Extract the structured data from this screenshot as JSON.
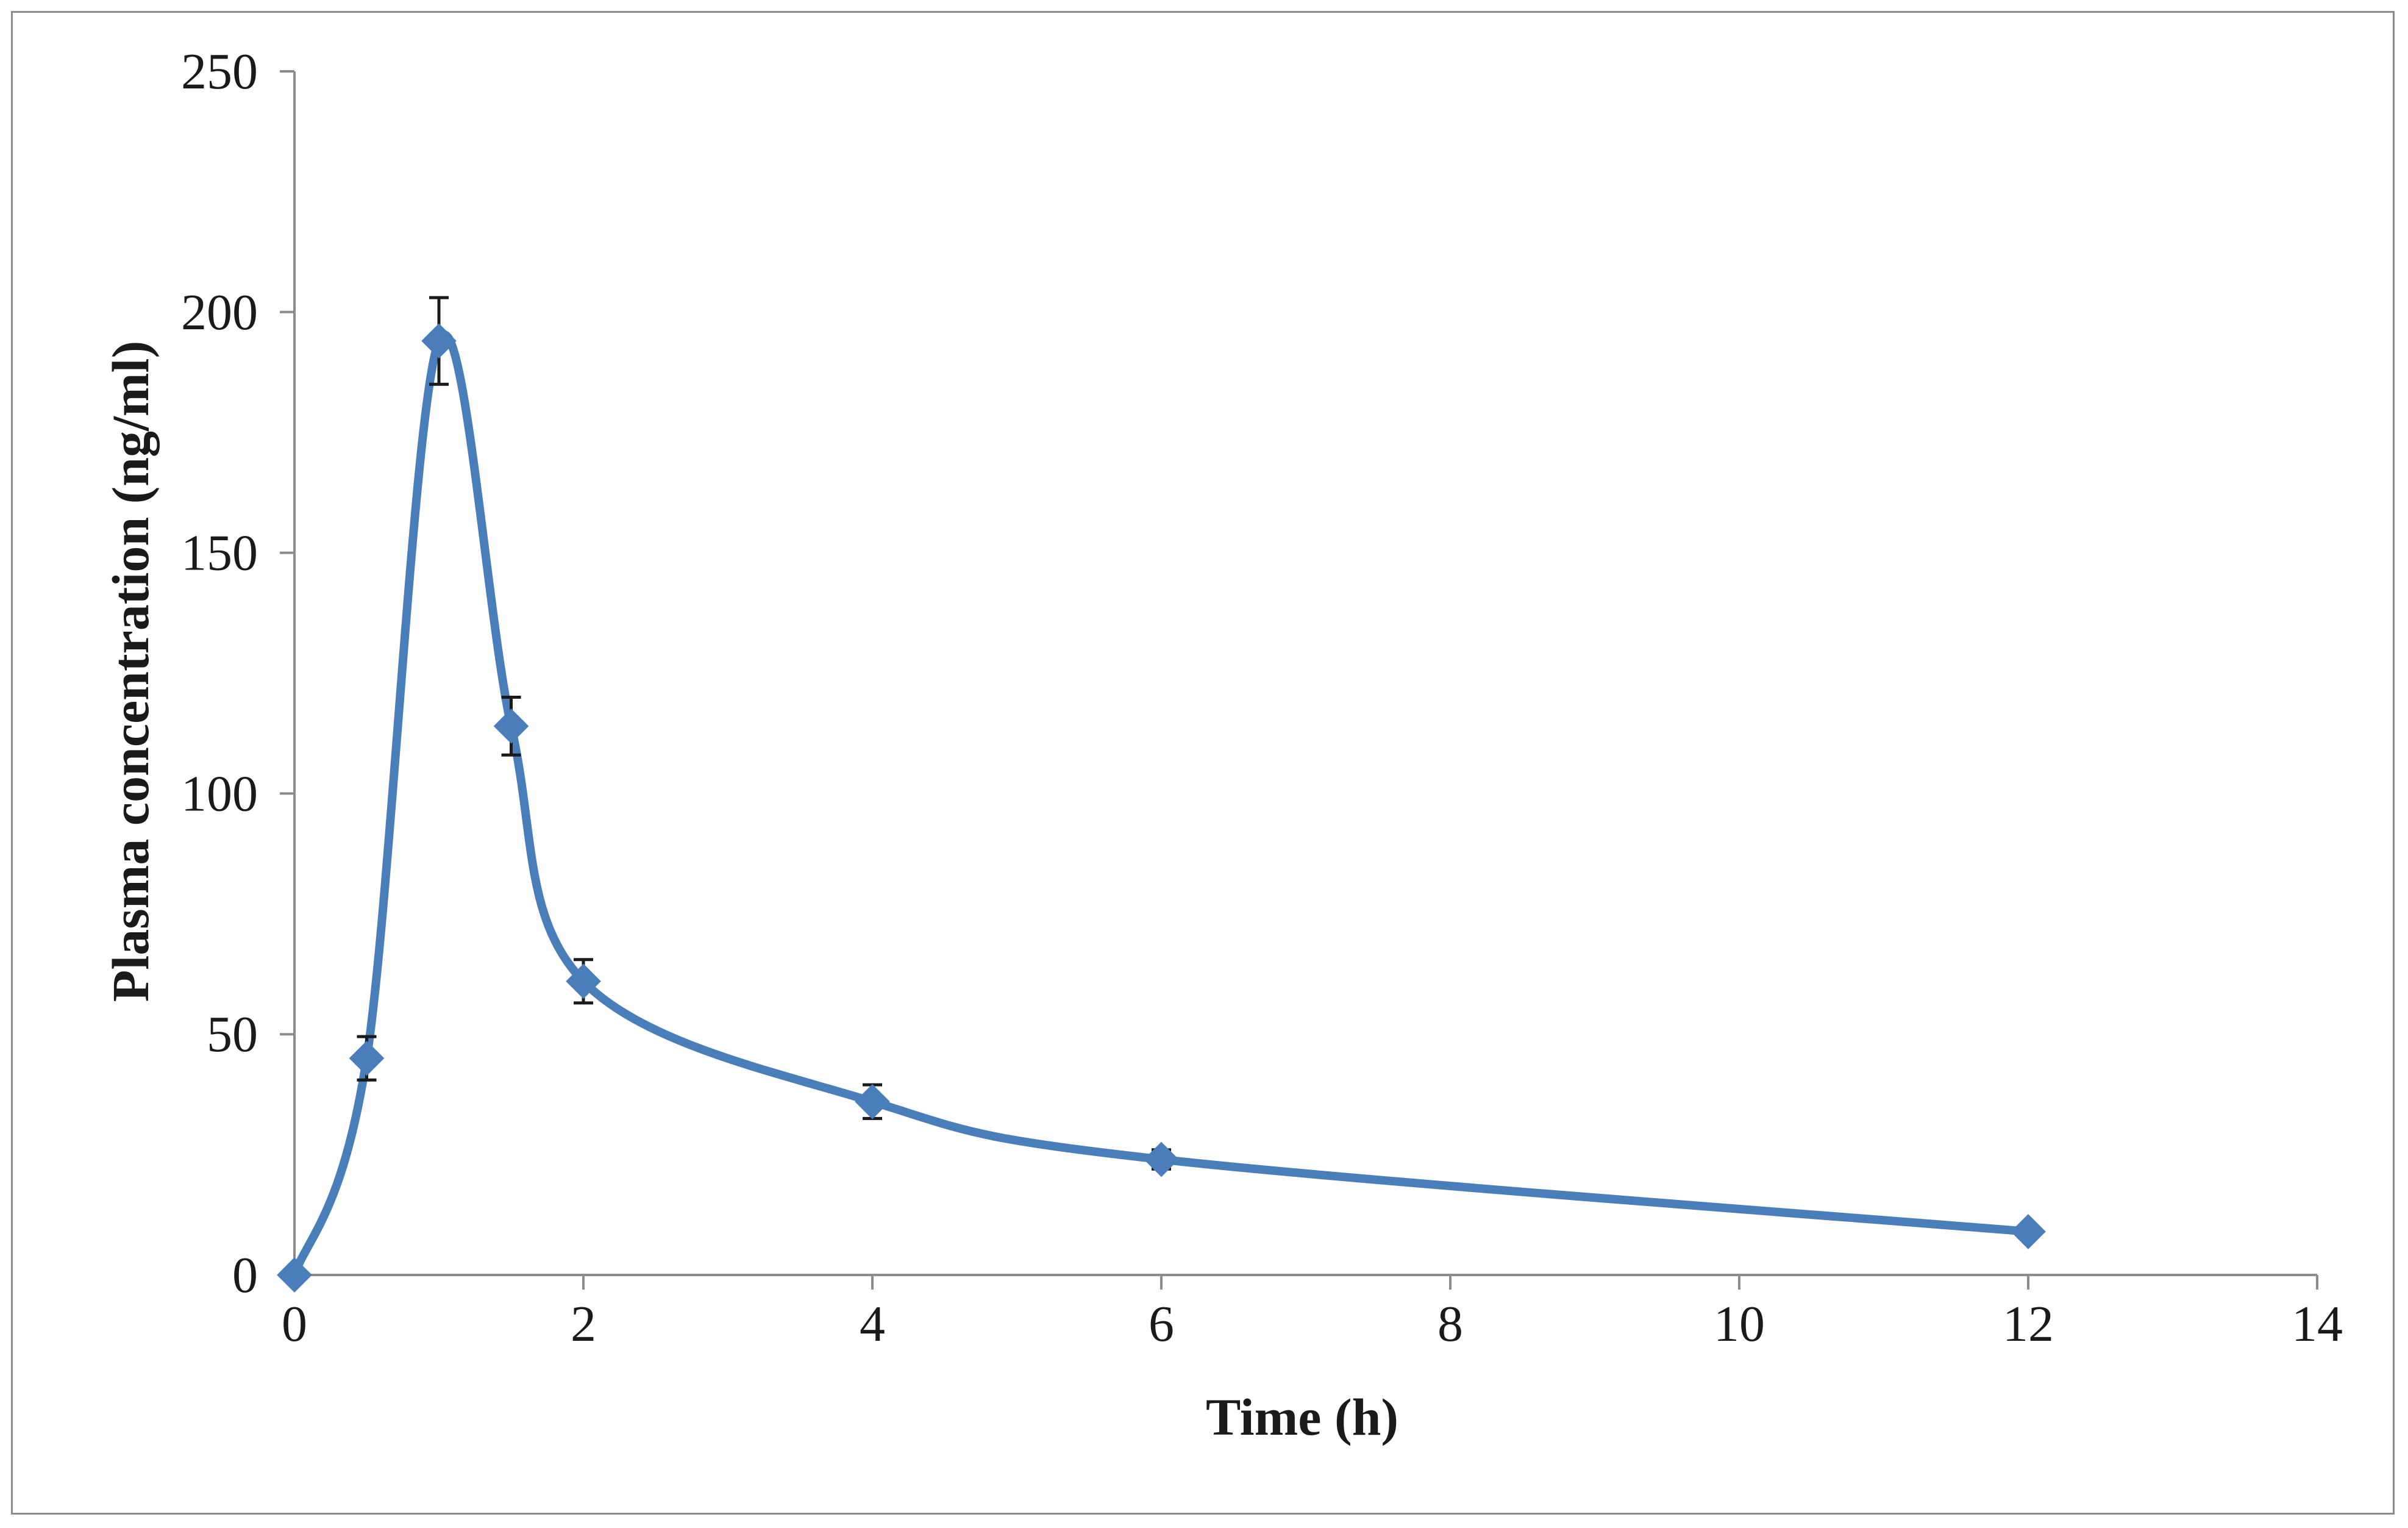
{
  "chart_data": {
    "type": "line",
    "title": "",
    "xlabel": "Time (h)",
    "ylabel": "Plasma concentration (ng/ml)",
    "xlim": [
      0,
      14
    ],
    "ylim": [
      0,
      250
    ],
    "xticks": [
      0,
      2,
      4,
      6,
      8,
      10,
      12,
      14
    ],
    "yticks": [
      0,
      50,
      100,
      150,
      200,
      250
    ],
    "grid": false,
    "legend": "none",
    "series": [
      {
        "name": "Plasma concentration",
        "color": "#4a7ebb",
        "marker": "diamond",
        "smooth": true,
        "x": [
          0,
          0.5,
          1,
          1.5,
          2,
          4,
          6,
          12
        ],
        "y": [
          0,
          45,
          194,
          114,
          61,
          36,
          24,
          9
        ],
        "error": [
          0,
          4.5,
          9,
          6,
          4.5,
          3.5,
          2,
          1
        ]
      }
    ]
  }
}
